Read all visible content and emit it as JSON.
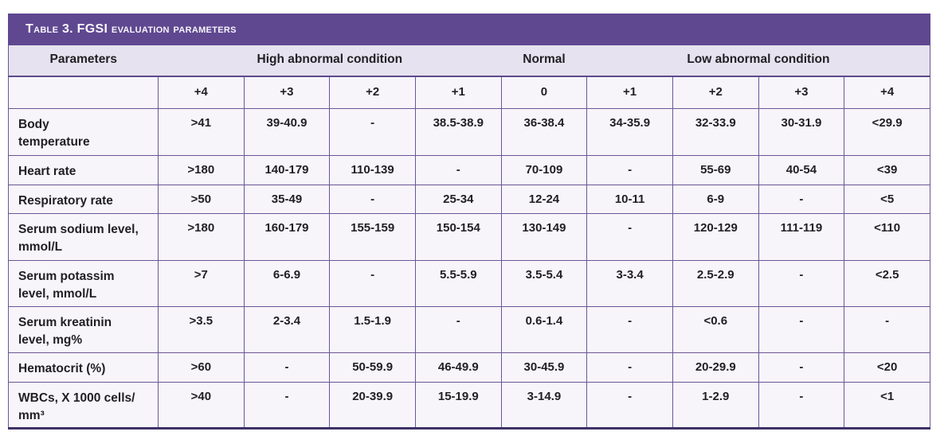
{
  "title": "Table 3. FGSI evaluation parameters",
  "header": {
    "parameters_label": "Parameters",
    "groups": [
      {
        "label": "High abnormal condition",
        "span": 4
      },
      {
        "label": "Normal",
        "span": 1
      },
      {
        "label": "Low abnormal condition",
        "span": 4
      }
    ],
    "scores": [
      "+4",
      "+3",
      "+2",
      "+1",
      "0",
      "+1",
      "+2",
      "+3",
      "+4"
    ]
  },
  "rows": [
    {
      "parameter": "Body\ntemperature",
      "values": [
        ">41",
        "39-40.9",
        "-",
        "38.5-38.9",
        "36-38.4",
        "34-35.9",
        "32-33.9",
        "30-31.9",
        "<29.9"
      ]
    },
    {
      "parameter": "Heart rate",
      "values": [
        ">180",
        "140-179",
        "110-139",
        "-",
        "70-109",
        "-",
        "55-69",
        "40-54",
        "<39"
      ]
    },
    {
      "parameter": "Respiratory rate",
      "values": [
        ">50",
        "35-49",
        "-",
        "25-34",
        "12-24",
        "10-11",
        "6-9",
        "-",
        "<5"
      ]
    },
    {
      "parameter": "Serum sodium level,\nmmol/L",
      "values": [
        ">180",
        "160-179",
        "155-159",
        "150-154",
        "130-149",
        "-",
        "120-129",
        "111-119",
        "<110"
      ]
    },
    {
      "parameter": "Serum potassim\nlevel, mmol/L",
      "values": [
        ">7",
        "6-6.9",
        "-",
        "5.5-5.9",
        "3.5-5.4",
        "3-3.4",
        "2.5-2.9",
        "-",
        "<2.5"
      ]
    },
    {
      "parameter": "Serum kreatinin\nlevel, mg%",
      "values": [
        ">3.5",
        "2-3.4",
        "1.5-1.9",
        "-",
        "0.6-1.4",
        "-",
        "<0.6",
        "-",
        "-"
      ]
    },
    {
      "parameter": "Hematocrit (%)",
      "values": [
        ">60",
        "-",
        "50-59.9",
        "46-49.9",
        "30-45.9",
        "-",
        "20-29.9",
        "-",
        "<20"
      ]
    },
    {
      "parameter": "WBCs, X 1000 cells/\nmm³",
      "values": [
        ">40",
        "-",
        "20-39.9",
        "15-19.9",
        "3-14.9",
        "-",
        "1-2.9",
        "-",
        "<1"
      ]
    }
  ],
  "colors": {
    "title_bar_bg": "#5f4890",
    "title_text": "#f7f5fc",
    "group_header_bg": "#e6e2ef",
    "cell_bg": "#f7f5fa",
    "grid_border": "#6b5695",
    "bottom_border": "#3f3168",
    "text": "#211f24"
  }
}
